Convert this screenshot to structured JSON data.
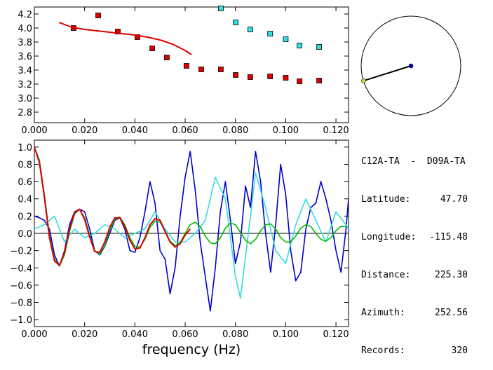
{
  "info": {
    "station_pair": "C12A-TA  -  D09A-TA",
    "rows": [
      {
        "label": "Latitude:",
        "value": "47.70"
      },
      {
        "label": "Longitude:",
        "value": "-115.48"
      },
      {
        "label": "Distance:",
        "value": "225.30"
      },
      {
        "label": "Azimuth:",
        "value": "252.56"
      },
      {
        "label": "Records:",
        "value": "320"
      }
    ]
  },
  "colors": {
    "red": "#dd0000",
    "cyan": "#33dddd",
    "blue": "#0000cc",
    "green": "#00bb00",
    "black": "#000000"
  },
  "chart_data": [
    {
      "type": "scatter",
      "xlabel": "",
      "ylabel": "",
      "xlim": [
        0.0,
        0.125
      ],
      "ylim": [
        2.65,
        4.3
      ],
      "x_ticks": [
        "0.000",
        "0.020",
        "0.040",
        "0.060",
        "0.080",
        "0.100",
        "0.120"
      ],
      "y_ticks": [
        "2.8",
        "3.0",
        "3.2",
        "3.4",
        "3.6",
        "3.8",
        "4.0",
        "4.2"
      ],
      "series": [
        {
          "color": "red",
          "marker": "square",
          "x": [
            0.0156,
            0.0254,
            0.0332,
            0.041,
            0.0469,
            0.0527,
            0.0605,
            0.0664,
            0.0742,
            0.0801,
            0.0859,
            0.0938,
            0.1,
            0.1055,
            0.1133
          ],
          "y": [
            4.0,
            4.18,
            3.95,
            3.87,
            3.71,
            3.58,
            3.46,
            3.41,
            3.41,
            3.33,
            3.3,
            3.31,
            3.29,
            3.24,
            3.25
          ]
        },
        {
          "color": "cyan",
          "marker": "square",
          "x": [
            0.0742,
            0.0801,
            0.0859,
            0.0938,
            0.1,
            0.1055,
            0.1133
          ],
          "y": [
            4.28,
            4.08,
            3.98,
            3.92,
            3.84,
            3.75,
            3.73
          ]
        },
        {
          "color": "red",
          "style": "line",
          "x": [
            0.0098,
            0.015,
            0.02,
            0.025,
            0.03,
            0.035,
            0.04,
            0.045,
            0.05,
            0.055,
            0.06,
            0.0625
          ],
          "y": [
            4.08,
            4.01,
            3.98,
            3.96,
            3.94,
            3.92,
            3.9,
            3.87,
            3.83,
            3.77,
            3.68,
            3.62
          ]
        }
      ]
    },
    {
      "type": "line",
      "xlabel": "frequency (Hz)",
      "ylabel": "",
      "xlim": [
        0.0,
        0.125
      ],
      "ylim": [
        -1.08,
        1.08
      ],
      "x_ticks": [
        "0.000",
        "0.020",
        "0.040",
        "0.060",
        "0.080",
        "0.100",
        "0.120"
      ],
      "y_ticks": [
        "-1.0",
        "-0.8",
        "-0.6",
        "-0.4",
        "-0.2",
        "0.0",
        "0.2",
        "0.4",
        "0.6",
        "0.8",
        "1.0"
      ],
      "series": [
        {
          "color": "blue",
          "x": [
            0.0,
            0.002,
            0.004,
            0.006,
            0.008,
            0.01,
            0.012,
            0.014,
            0.016,
            0.018,
            0.02,
            0.022,
            0.024,
            0.026,
            0.028,
            0.03,
            0.032,
            0.034,
            0.036,
            0.038,
            0.04,
            0.042,
            0.044,
            0.046,
            0.048,
            0.05,
            0.052,
            0.054,
            0.056,
            0.058,
            0.06,
            0.062,
            0.064,
            0.066,
            0.068,
            0.07,
            0.072,
            0.074,
            0.076,
            0.078,
            0.08,
            0.082,
            0.084,
            0.086,
            0.088,
            0.09,
            0.092,
            0.094,
            0.096,
            0.098,
            0.1,
            0.102,
            0.104,
            0.106,
            0.108,
            0.11,
            0.112,
            0.114,
            0.116,
            0.118,
            0.12,
            0.122,
            0.124,
            0.125
          ],
          "y": [
            0.2,
            0.18,
            0.15,
            0.05,
            -0.25,
            -0.38,
            -0.2,
            0.1,
            0.25,
            0.28,
            0.25,
            0.05,
            -0.2,
            -0.25,
            -0.15,
            0.0,
            0.15,
            0.18,
            0.05,
            -0.2,
            -0.22,
            -0.05,
            0.25,
            0.6,
            0.35,
            -0.2,
            -0.3,
            -0.7,
            -0.4,
            0.2,
            0.65,
            0.95,
            0.5,
            -0.1,
            -0.5,
            -0.9,
            -0.4,
            0.25,
            0.6,
            0.15,
            -0.35,
            -0.1,
            0.55,
            0.3,
            0.95,
            0.6,
            0.0,
            -0.45,
            0.1,
            0.8,
            0.45,
            -0.2,
            -0.55,
            -0.45,
            0.05,
            0.3,
            0.35,
            0.6,
            0.4,
            0.15,
            -0.2,
            -0.45,
            0.05,
            0.4
          ]
        },
        {
          "color": "cyan",
          "x": [
            0.0,
            0.004,
            0.008,
            0.012,
            0.016,
            0.02,
            0.024,
            0.028,
            0.032,
            0.036,
            0.04,
            0.044,
            0.048,
            0.052,
            0.056,
            0.06,
            0.064,
            0.068,
            0.072,
            0.076,
            0.08,
            0.082,
            0.086,
            0.088,
            0.092,
            0.096,
            0.1,
            0.104,
            0.108,
            0.112,
            0.116,
            0.12,
            0.124,
            0.125
          ],
          "y": [
            0.05,
            0.1,
            0.2,
            -0.1,
            0.05,
            -0.05,
            0.0,
            0.1,
            0.05,
            -0.05,
            0.0,
            0.05,
            0.25,
            0.05,
            -0.1,
            -0.1,
            0.0,
            0.15,
            0.65,
            0.4,
            -0.5,
            -0.75,
            0.2,
            0.7,
            0.3,
            -0.2,
            -0.35,
            0.1,
            0.4,
            0.15,
            -0.1,
            0.25,
            0.1,
            0.05
          ]
        },
        {
          "color": "green",
          "x": [
            0.0,
            0.002,
            0.004,
            0.006,
            0.008,
            0.01,
            0.012,
            0.014,
            0.016,
            0.018,
            0.02,
            0.022,
            0.024,
            0.026,
            0.028,
            0.03,
            0.032,
            0.034,
            0.036,
            0.038,
            0.04,
            0.042,
            0.044,
            0.046,
            0.048,
            0.05,
            0.052,
            0.054,
            0.056,
            0.058,
            0.06,
            0.062,
            0.064,
            0.066,
            0.068,
            0.07,
            0.072,
            0.074,
            0.076,
            0.078,
            0.08,
            0.082,
            0.084,
            0.086,
            0.088,
            0.09,
            0.092,
            0.094,
            0.096,
            0.098,
            0.1,
            0.102,
            0.104,
            0.106,
            0.108,
            0.11,
            0.112,
            0.114,
            0.116,
            0.118,
            0.12,
            0.122,
            0.124
          ],
          "y": [
            1.0,
            0.85,
            0.45,
            -0.02,
            -0.3,
            -0.38,
            -0.25,
            0.02,
            0.22,
            0.28,
            0.18,
            -0.02,
            -0.2,
            -0.24,
            -0.14,
            0.04,
            0.16,
            0.19,
            0.1,
            -0.05,
            -0.15,
            -0.16,
            -0.07,
            0.07,
            0.14,
            0.13,
            0.03,
            -0.09,
            -0.14,
            -0.11,
            0.0,
            0.1,
            0.13,
            0.08,
            -0.03,
            -0.11,
            -0.12,
            -0.05,
            0.06,
            0.12,
            0.1,
            0.01,
            -0.08,
            -0.12,
            -0.07,
            0.03,
            0.1,
            0.11,
            0.05,
            -0.05,
            -0.1,
            -0.1,
            -0.03,
            0.06,
            0.1,
            0.08,
            0.0,
            -0.07,
            -0.09,
            -0.05,
            0.03,
            0.08,
            0.08
          ]
        },
        {
          "color": "red",
          "x": [
            0.0,
            0.002,
            0.004,
            0.006,
            0.008,
            0.01,
            0.012,
            0.014,
            0.016,
            0.018,
            0.02,
            0.022,
            0.024,
            0.026,
            0.028,
            0.03,
            0.032,
            0.034,
            0.036,
            0.038,
            0.04,
            0.042,
            0.044,
            0.046,
            0.048,
            0.05,
            0.052,
            0.054,
            0.056,
            0.058,
            0.06,
            0.062
          ],
          "y": [
            1.0,
            0.82,
            0.42,
            -0.05,
            -0.32,
            -0.37,
            -0.22,
            0.05,
            0.24,
            0.28,
            0.16,
            -0.04,
            -0.21,
            -0.22,
            -0.1,
            0.07,
            0.18,
            0.18,
            0.08,
            -0.08,
            -0.18,
            -0.17,
            -0.05,
            0.1,
            0.17,
            0.15,
            0.02,
            -0.1,
            -0.16,
            -0.12,
            -0.02,
            0.05
          ]
        }
      ]
    }
  ],
  "azimuth_diagram": {
    "azimuth_deg": 252.56
  }
}
